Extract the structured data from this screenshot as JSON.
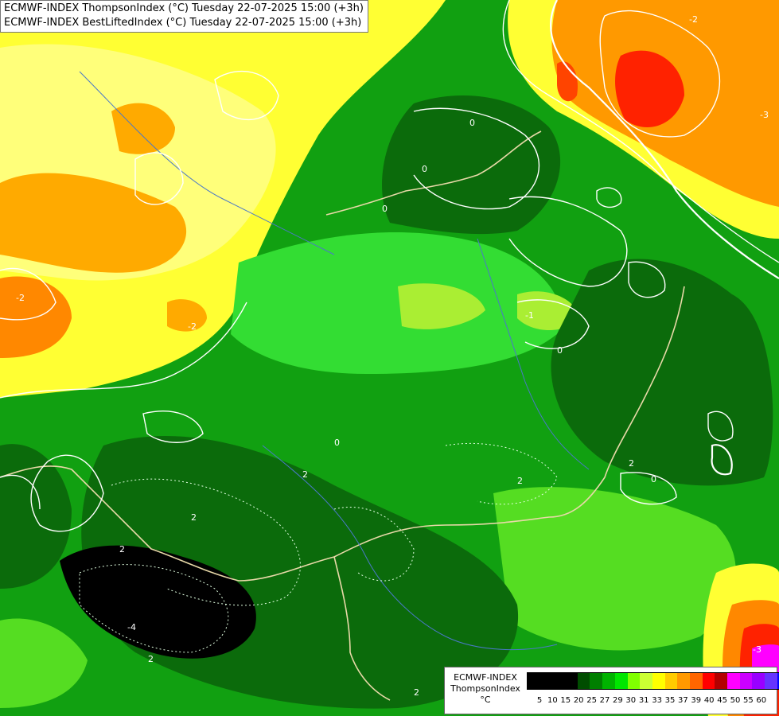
{
  "title": {
    "line1": "ECMWF-INDEX ThompsonIndex (°C) Tuesday 22-07-2025 15:00 (+3h)",
    "line2": "ECMWF-INDEX BestLiftedIndex (°C) Tuesday 22-07-2025 15:00 (+3h)"
  },
  "legend": {
    "model": "ECMWF-INDEX",
    "parameter": "ThompsonIndex",
    "unit": "°C",
    "colors": [
      "#000000",
      "#000000",
      "#000000",
      "#000000",
      "#004d00",
      "#007f00",
      "#00b300",
      "#00e600",
      "#80ff00",
      "#ccff33",
      "#ffff00",
      "#ffcc00",
      "#ff9900",
      "#ff6600",
      "#ff0000",
      "#b30000",
      "#ff00ff",
      "#cc00ff",
      "#9900ff",
      "#6633ff",
      "#0000ff"
    ],
    "ticks": [
      "5",
      "10",
      "15",
      "20",
      "25",
      "27",
      "29",
      "30",
      "31",
      "33",
      "35",
      "37",
      "39",
      "40",
      "45",
      "50",
      "55",
      "60"
    ]
  },
  "contour_labels": [
    "-2",
    "0",
    "-3",
    "-2",
    "0",
    "-2",
    "0",
    "0",
    "-1",
    "0",
    "2",
    "2",
    "2",
    "2",
    "0",
    "-4",
    "2",
    "2",
    "2",
    "-3"
  ]
}
